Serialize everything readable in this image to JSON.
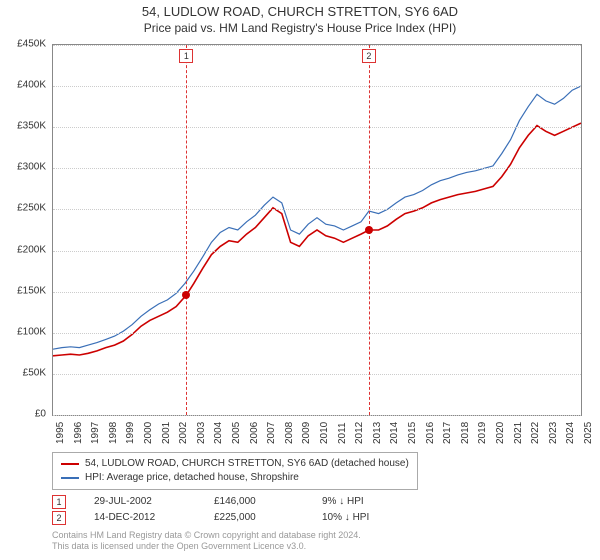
{
  "title": {
    "main": "54, LUDLOW ROAD, CHURCH STRETTON, SY6 6AD",
    "sub": "Price paid vs. HM Land Registry's House Price Index (HPI)",
    "fontsize_main": 13,
    "fontsize_sub": 12
  },
  "chart": {
    "type": "line",
    "background_color": "#ffffff",
    "grid_color": "#cccccc",
    "border_color": "#888888",
    "y_axis": {
      "min": 0,
      "max": 450000,
      "tick_step": 50000,
      "ticks": [
        "£0",
        "£50K",
        "£100K",
        "£150K",
        "£200K",
        "£250K",
        "£300K",
        "£350K",
        "£400K",
        "£450K"
      ],
      "label_fontsize": 10
    },
    "x_axis": {
      "min": 1995,
      "max": 2025,
      "ticks": [
        "1995",
        "1996",
        "1997",
        "1998",
        "1999",
        "2000",
        "2001",
        "2002",
        "2003",
        "2004",
        "2005",
        "2006",
        "2007",
        "2008",
        "2009",
        "2010",
        "2011",
        "2012",
        "2013",
        "2014",
        "2015",
        "2016",
        "2017",
        "2018",
        "2019",
        "2020",
        "2021",
        "2022",
        "2023",
        "2024",
        "2025"
      ],
      "label_fontsize": 10
    },
    "series": [
      {
        "name": "54, LUDLOW ROAD, CHURCH STRETTON, SY6 6AD (detached house)",
        "color": "#cc0000",
        "line_width": 1.6,
        "data": [
          [
            1995,
            72000
          ],
          [
            1995.5,
            73000
          ],
          [
            1996,
            74000
          ],
          [
            1996.5,
            73000
          ],
          [
            1997,
            75000
          ],
          [
            1997.5,
            78000
          ],
          [
            1998,
            82000
          ],
          [
            1998.5,
            85000
          ],
          [
            1999,
            90000
          ],
          [
            1999.5,
            98000
          ],
          [
            2000,
            108000
          ],
          [
            2000.5,
            115000
          ],
          [
            2001,
            120000
          ],
          [
            2001.5,
            125000
          ],
          [
            2002,
            132000
          ],
          [
            2002.58,
            146000
          ],
          [
            2003,
            160000
          ],
          [
            2003.5,
            178000
          ],
          [
            2004,
            195000
          ],
          [
            2004.5,
            205000
          ],
          [
            2005,
            212000
          ],
          [
            2005.5,
            210000
          ],
          [
            2006,
            220000
          ],
          [
            2006.5,
            228000
          ],
          [
            2007,
            240000
          ],
          [
            2007.5,
            252000
          ],
          [
            2008,
            245000
          ],
          [
            2008.5,
            210000
          ],
          [
            2009,
            205000
          ],
          [
            2009.5,
            218000
          ],
          [
            2010,
            225000
          ],
          [
            2010.5,
            218000
          ],
          [
            2011,
            215000
          ],
          [
            2011.5,
            210000
          ],
          [
            2012,
            215000
          ],
          [
            2012.5,
            220000
          ],
          [
            2012.95,
            225000
          ],
          [
            2013.5,
            225000
          ],
          [
            2014,
            230000
          ],
          [
            2014.5,
            238000
          ],
          [
            2015,
            245000
          ],
          [
            2015.5,
            248000
          ],
          [
            2016,
            252000
          ],
          [
            2016.5,
            258000
          ],
          [
            2017,
            262000
          ],
          [
            2017.5,
            265000
          ],
          [
            2018,
            268000
          ],
          [
            2018.5,
            270000
          ],
          [
            2019,
            272000
          ],
          [
            2019.5,
            275000
          ],
          [
            2020,
            278000
          ],
          [
            2020.5,
            290000
          ],
          [
            2021,
            305000
          ],
          [
            2021.5,
            325000
          ],
          [
            2022,
            340000
          ],
          [
            2022.5,
            352000
          ],
          [
            2023,
            345000
          ],
          [
            2023.5,
            340000
          ],
          [
            2024,
            345000
          ],
          [
            2024.5,
            350000
          ],
          [
            2025,
            355000
          ]
        ]
      },
      {
        "name": "HPI: Average price, detached house, Shropshire",
        "color": "#3a6fb7",
        "line_width": 1.2,
        "data": [
          [
            1995,
            80000
          ],
          [
            1995.5,
            82000
          ],
          [
            1996,
            83000
          ],
          [
            1996.5,
            82000
          ],
          [
            1997,
            85000
          ],
          [
            1997.5,
            88000
          ],
          [
            1998,
            92000
          ],
          [
            1998.5,
            96000
          ],
          [
            1999,
            102000
          ],
          [
            1999.5,
            110000
          ],
          [
            2000,
            120000
          ],
          [
            2000.5,
            128000
          ],
          [
            2001,
            135000
          ],
          [
            2001.5,
            140000
          ],
          [
            2002,
            148000
          ],
          [
            2002.5,
            160000
          ],
          [
            2003,
            175000
          ],
          [
            2003.5,
            192000
          ],
          [
            2004,
            210000
          ],
          [
            2004.5,
            222000
          ],
          [
            2005,
            228000
          ],
          [
            2005.5,
            225000
          ],
          [
            2006,
            235000
          ],
          [
            2006.5,
            243000
          ],
          [
            2007,
            255000
          ],
          [
            2007.5,
            265000
          ],
          [
            2008,
            258000
          ],
          [
            2008.5,
            225000
          ],
          [
            2009,
            220000
          ],
          [
            2009.5,
            232000
          ],
          [
            2010,
            240000
          ],
          [
            2010.5,
            232000
          ],
          [
            2011,
            230000
          ],
          [
            2011.5,
            225000
          ],
          [
            2012,
            230000
          ],
          [
            2012.5,
            235000
          ],
          [
            2012.95,
            248000
          ],
          [
            2013.5,
            245000
          ],
          [
            2014,
            250000
          ],
          [
            2014.5,
            258000
          ],
          [
            2015,
            265000
          ],
          [
            2015.5,
            268000
          ],
          [
            2016,
            273000
          ],
          [
            2016.5,
            280000
          ],
          [
            2017,
            285000
          ],
          [
            2017.5,
            288000
          ],
          [
            2018,
            292000
          ],
          [
            2018.5,
            295000
          ],
          [
            2019,
            297000
          ],
          [
            2019.5,
            300000
          ],
          [
            2020,
            303000
          ],
          [
            2020.5,
            318000
          ],
          [
            2021,
            335000
          ],
          [
            2021.5,
            358000
          ],
          [
            2022,
            375000
          ],
          [
            2022.5,
            390000
          ],
          [
            2023,
            382000
          ],
          [
            2023.5,
            378000
          ],
          [
            2024,
            385000
          ],
          [
            2024.5,
            395000
          ],
          [
            2025,
            400000
          ]
        ]
      }
    ],
    "markers": [
      {
        "id": "1",
        "x": 2002.58,
        "y": 146000,
        "color": "#cc0000",
        "vline_color": "#dd3333"
      },
      {
        "id": "2",
        "x": 2012.95,
        "y": 225000,
        "color": "#cc0000",
        "vline_color": "#dd3333"
      }
    ]
  },
  "legend": {
    "items": [
      {
        "color": "#cc0000",
        "label": "54, LUDLOW ROAD, CHURCH STRETTON, SY6 6AD (detached house)"
      },
      {
        "color": "#3a6fb7",
        "label": "HPI: Average price, detached house, Shropshire"
      }
    ]
  },
  "sales_table": {
    "rows": [
      {
        "marker": "1",
        "date": "29-JUL-2002",
        "price": "£146,000",
        "pct": "9% ↓ HPI"
      },
      {
        "marker": "2",
        "date": "14-DEC-2012",
        "price": "£225,000",
        "pct": "10% ↓ HPI"
      }
    ]
  },
  "footer": {
    "line1": "Contains HM Land Registry data © Crown copyright and database right 2024.",
    "line2": "This data is licensed under the Open Government Licence v3.0."
  }
}
